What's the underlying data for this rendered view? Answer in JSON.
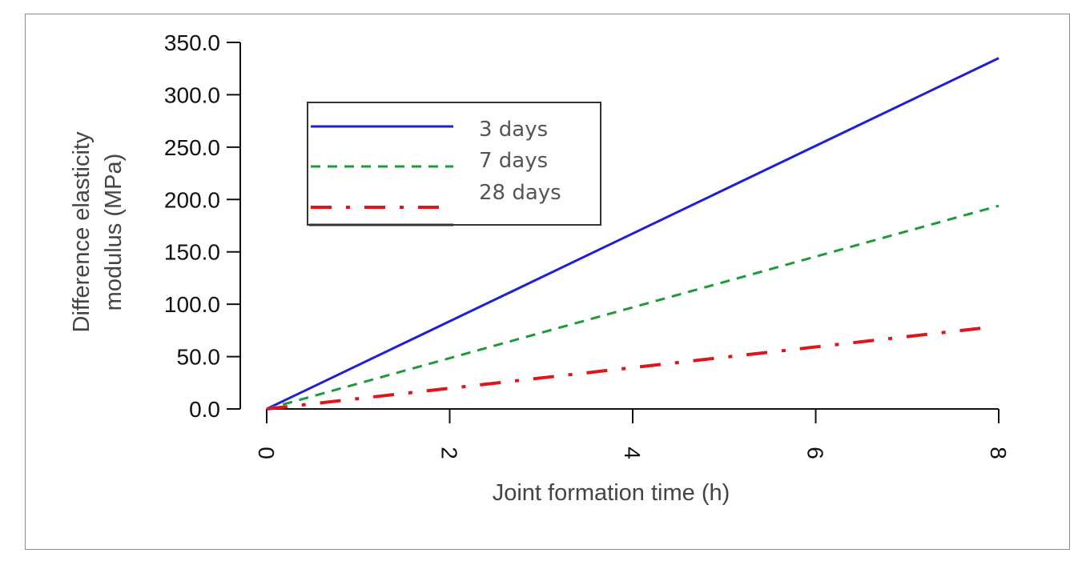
{
  "chart_data": {
    "type": "line",
    "title": "",
    "xlabel": "Joint formation time (h)",
    "ylabel_lines": [
      "Difference elasticity",
      "modulus (MPa)"
    ],
    "xlim": [
      0,
      8
    ],
    "ylim": [
      0,
      350
    ],
    "x_ticks": [
      0,
      2,
      4,
      6,
      8
    ],
    "y_ticks": [
      "0.0",
      "50.0",
      "100.0",
      "150.0",
      "200.0",
      "250.0",
      "300.0",
      "350.0"
    ],
    "grid": false,
    "legend_position": "top-left",
    "series": [
      {
        "name": "3 days",
        "color": "#1f1fd6",
        "style": "solid",
        "x": [
          0,
          8
        ],
        "y": [
          0,
          335
        ]
      },
      {
        "name": "7 days",
        "color": "#1e9a3a",
        "style": "dashed",
        "x": [
          0,
          8
        ],
        "y": [
          0,
          194
        ]
      },
      {
        "name": "28 days",
        "color": "#e0141a",
        "style": "dashdot",
        "x": [
          0,
          7.8
        ],
        "y": [
          0,
          77
        ]
      }
    ]
  }
}
